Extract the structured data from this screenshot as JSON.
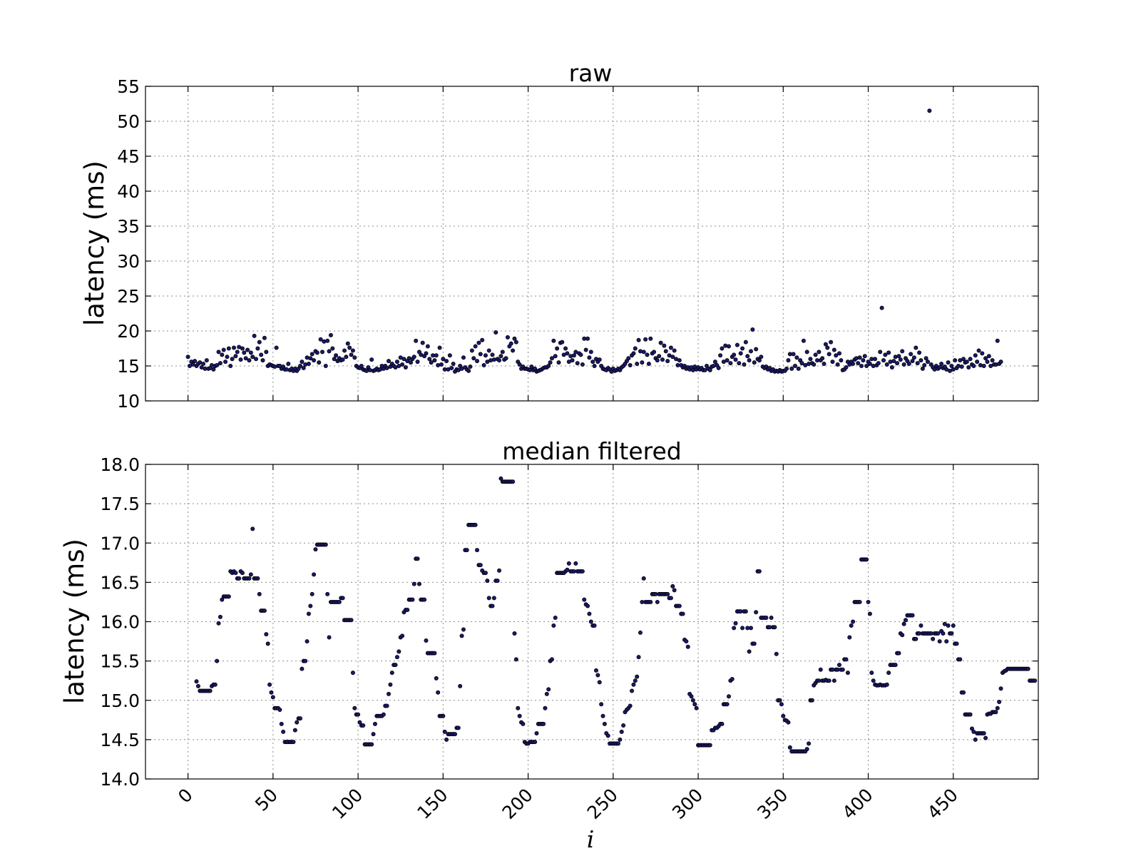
{
  "colors": {
    "marker": "#1a1a6e",
    "grid": "#8c8c8c"
  },
  "chart_data": [
    {
      "type": "scatter",
      "title": "raw",
      "xlabel": "",
      "ylabel": "latency (ms)",
      "xlim": [
        -25,
        500
      ],
      "ylim": [
        10,
        55
      ],
      "xticks": [
        0,
        50,
        100,
        150,
        200,
        250,
        300,
        350,
        400,
        450
      ],
      "yticks": [
        10,
        15,
        20,
        25,
        30,
        35,
        40,
        45,
        50,
        55
      ],
      "x_tick_labels_visible": false,
      "grid": true,
      "x_start": 0,
      "y": [
        16.3,
        15.0,
        15.6,
        15.2,
        15.7,
        15.0,
        15.3,
        15.5,
        14.8,
        15.3,
        14.6,
        15.8,
        14.6,
        14.7,
        15.1,
        14.5,
        15.0,
        15.1,
        17.0,
        15.4,
        16.6,
        17.3,
        15.6,
        16.3,
        17.5,
        15.0,
        16.0,
        17.6,
        16.4,
        17.0,
        17.7,
        15.9,
        17.5,
        16.9,
        16.1,
        17.3,
        15.8,
        16.9,
        16.3,
        19.3,
        16.0,
        17.5,
        18.4,
        16.6,
        15.8,
        19.0,
        17.0,
        15.0,
        15.2,
        15.1,
        15.0,
        14.9,
        17.6,
        15.0,
        15.0,
        14.6,
        14.9,
        14.5,
        14.5,
        15.3,
        14.4,
        14.6,
        14.3,
        14.6,
        14.3,
        14.6,
        15.0,
        15.6,
        14.7,
        15.2,
        16.2,
        15.3,
        16.1,
        16.7,
        15.8,
        17.1,
        16.9,
        15.5,
        18.8,
        17.0,
        18.5,
        15.0,
        18.6,
        17.1,
        19.4,
        17.5,
        16.0,
        16.5,
        15.7,
        16.1,
        15.8,
        15.9,
        17.2,
        16.3,
        18.2,
        17.6,
        16.6,
        17.2,
        16.2,
        15.0,
        14.8,
        14.7,
        15.0,
        14.5,
        14.4,
        14.3,
        14.8,
        14.4,
        15.9,
        14.3,
        14.4,
        14.6,
        14.4,
        14.5,
        15.0,
        14.6,
        15.0,
        14.7,
        15.7,
        14.9,
        15.3,
        15.0,
        14.8,
        15.6,
        15.0,
        16.2,
        15.2,
        16.0,
        14.8,
        15.7,
        16.1,
        15.5,
        16.0,
        16.3,
        18.6,
        15.6,
        17.0,
        16.6,
        18.3,
        16.4,
        16.8,
        17.8,
        16.0,
        15.5,
        16.5,
        15.8,
        16.5,
        15.1,
        17.6,
        15.2,
        16.0,
        14.5,
        15.7,
        14.5,
        16.5,
        14.7,
        15.3,
        14.2,
        14.5,
        14.4,
        15.0,
        14.6,
        16.2,
        14.8,
        14.5,
        14.3,
        14.9,
        17.2,
        16.1,
        17.8,
        15.7,
        18.3,
        16.7,
        18.7,
        15.1,
        16.5,
        15.6,
        17.2,
        15.8,
        16.6,
        15.9,
        19.8,
        16.0,
        15.8,
        16.4,
        17.0,
        15.9,
        16.1,
        19.1,
        17.8,
        18.2,
        17.2,
        18.9,
        18.4,
        15.6,
        15.2,
        14.6,
        14.9,
        14.6,
        14.6,
        14.5,
        14.4,
        14.9,
        14.4,
        14.6,
        14.2,
        14.3,
        14.4,
        14.5,
        14.7,
        14.8,
        14.8,
        15.0,
        15.5,
        16.1,
        18.6,
        16.4,
        17.5,
        15.5,
        18.3,
        18.4,
        16.6,
        17.5,
        16.8,
        15.6,
        16.4,
        15.8,
        16.5,
        17.0,
        15.4,
        16.8,
        16.6,
        15.2,
        18.9,
        17.3,
        18.9,
        16.2,
        17.0,
        15.6,
        15.0,
        16.0,
        15.6,
        15.9,
        15.0,
        14.6,
        14.5,
        14.4,
        14.7,
        14.5,
        14.2,
        14.6,
        14.3,
        14.4,
        14.6,
        14.4,
        14.8,
        15.0,
        15.3,
        15.7,
        16.1,
        15.1,
        16.5,
        16.8,
        17.5,
        15.3,
        18.7,
        17.1,
        15.5,
        17.0,
        18.8,
        16.6,
        15.3,
        18.9,
        16.8,
        17.0,
        16.1,
        15.8,
        16.4,
        18.3,
        15.9,
        17.9,
        17.1,
        15.7,
        16.5,
        17.6,
        16.3,
        17.2,
        16.0,
        15.1,
        15.8,
        15.1,
        14.8,
        15.0,
        14.6,
        14.8,
        14.5,
        14.8,
        14.4,
        14.9,
        14.5,
        14.8,
        14.5,
        14.7,
        14.4,
        14.4,
        15.0,
        14.6,
        14.4,
        14.9,
        15.0,
        15.6,
        15.1,
        14.7,
        16.5,
        17.5,
        15.6,
        17.9,
        15.8,
        17.8,
        15.4,
        16.3,
        16.6,
        15.9,
        18.0,
        15.4,
        16.8,
        17.5,
        15.2,
        18.4,
        16.4,
        15.8,
        17.1,
        20.2,
        15.5,
        17.4,
        16.0,
        15.8,
        16.3,
        14.9,
        14.7,
        14.9,
        14.5,
        14.7,
        14.3,
        14.5,
        14.2,
        14.3,
        14.2,
        14.4,
        14.2,
        14.3,
        14.3,
        14.6,
        15.8,
        16.7,
        14.6,
        16.7,
        15.0,
        16.2,
        14.6,
        15.8,
        15.4,
        18.6,
        15.1,
        17.0,
        15.3,
        16.0,
        15.4,
        15.2,
        16.6,
        15.8,
        17.0,
        15.8,
        16.1,
        15.3,
        18.1,
        17.6,
        16.7,
        18.4,
        15.6,
        17.3,
        16.5,
        15.2,
        16.8,
        15.8,
        14.4,
        14.5,
        14.8,
        15.6,
        15.2,
        15.6,
        15.3,
        15.9,
        16.1,
        15.4,
        16.2,
        15.0,
        15.8,
        16.4,
        15.0,
        15.6,
        15.3,
        16.0,
        15.0,
        16.0,
        15.1,
        15.4,
        17.0,
        23.3,
        15.8,
        16.6,
        15.2,
        16.9,
        15.6,
        14.8,
        15.7,
        16.3,
        15.4,
        16.4,
        15.9,
        17.1,
        15.2,
        16.1,
        15.7,
        15.3,
        16.7,
        15.7,
        16.2,
        17.6,
        15.4,
        16.9,
        15.8,
        14.6,
        15.1,
        16.1,
        15.6,
        51.5,
        15.2,
        14.8,
        14.5,
        15.0,
        14.6,
        14.8,
        15.3,
        14.7,
        14.9,
        14.5,
        15.5,
        14.3,
        15.0,
        14.5,
        15.8,
        14.7,
        15.0,
        15.8,
        14.9,
        16.0,
        15.5,
        15.6,
        14.8,
        16.0,
        15.2,
        15.0,
        16.5,
        15.6,
        17.2,
        15.1,
        16.8,
        15.0,
        16.1,
        15.6,
        16.4,
        15.0,
        15.8,
        15.2,
        15.2,
        18.6,
        15.3,
        15.6
      ]
    },
    {
      "type": "scatter",
      "title": "median filtered",
      "xlabel": "i",
      "ylabel": "latency (ms)",
      "xlim": [
        -25,
        500
      ],
      "ylim": [
        14.0,
        18.0
      ],
      "xticks": [
        0,
        50,
        100,
        150,
        200,
        250,
        300,
        350,
        400,
        450
      ],
      "yticks": [
        14.0,
        14.5,
        15.0,
        15.5,
        16.0,
        16.5,
        17.0,
        17.5,
        18.0
      ],
      "x_tick_labels_visible": true,
      "x_tick_rotation": -45,
      "grid": true,
      "x_start": 5,
      "y": [
        15.24,
        15.18,
        15.12,
        15.12,
        15.12,
        15.12,
        15.12,
        15.12,
        15.12,
        15.18,
        15.2,
        15.2,
        15.5,
        15.98,
        16.06,
        16.28,
        16.32,
        16.32,
        16.32,
        16.32,
        16.64,
        16.62,
        16.64,
        16.62,
        16.55,
        16.55,
        16.64,
        16.62,
        16.55,
        16.55,
        16.55,
        16.55,
        16.6,
        17.18,
        16.55,
        16.55,
        16.55,
        16.35,
        16.14,
        16.14,
        16.14,
        15.84,
        15.72,
        15.2,
        15.1,
        15.04,
        14.9,
        14.9,
        14.9,
        14.88,
        14.7,
        14.6,
        14.47,
        14.47,
        14.47,
        14.47,
        14.47,
        14.47,
        14.62,
        14.72,
        14.77,
        14.77,
        15.4,
        15.5,
        15.5,
        15.75,
        16.1,
        16.2,
        16.35,
        16.6,
        16.92,
        16.98,
        16.98,
        16.98,
        16.98,
        16.98,
        16.98,
        16.35,
        15.8,
        16.25,
        16.25,
        16.25,
        16.25,
        16.25,
        16.25,
        16.3,
        16.3,
        16.02,
        16.02,
        16.02,
        16.02,
        16.02,
        15.35,
        14.9,
        14.82,
        14.82,
        14.72,
        14.68,
        14.68,
        14.44,
        14.44,
        14.44,
        14.44,
        14.44,
        14.57,
        14.7,
        14.8,
        14.8,
        14.8,
        14.8,
        14.82,
        14.93,
        14.93,
        15.08,
        15.2,
        15.35,
        15.45,
        15.45,
        15.55,
        15.62,
        15.8,
        15.82,
        16.12,
        16.15,
        16.15,
        16.28,
        16.28,
        16.28,
        16.48,
        16.8,
        16.8,
        16.48,
        16.28,
        16.28,
        16.28,
        15.76,
        15.6,
        15.6,
        15.6,
        15.6,
        15.6,
        15.28,
        15.1,
        14.8,
        14.8,
        14.8,
        14.6,
        14.5,
        14.57,
        14.57,
        14.57,
        14.57,
        14.57,
        14.65,
        14.65,
        15.18,
        15.82,
        15.9,
        16.91,
        16.91,
        17.23,
        17.23,
        17.23,
        17.23,
        17.23,
        16.91,
        16.72,
        16.72,
        16.65,
        16.62,
        16.62,
        16.52,
        16.3,
        16.2,
        16.2,
        16.3,
        16.52,
        16.52,
        16.65,
        17.82,
        17.78,
        17.78,
        17.78,
        17.78,
        17.78,
        17.78,
        17.78,
        15.85,
        15.52,
        14.9,
        14.8,
        14.72,
        14.7,
        14.47,
        14.45,
        14.45,
        14.47,
        14.47,
        14.47,
        14.47,
        14.58,
        14.7,
        14.7,
        14.7,
        14.7,
        14.9,
        15.08,
        15.14,
        15.5,
        15.52,
        15.95,
        16.05,
        16.62,
        16.62,
        16.62,
        16.62,
        16.62,
        16.64,
        16.66,
        16.74,
        16.64,
        16.64,
        16.64,
        16.74,
        16.64,
        16.64,
        16.64,
        16.64,
        16.28,
        16.22,
        16.2,
        16.1,
        16.0,
        15.95,
        15.95,
        15.38,
        15.32,
        15.23,
        14.95,
        14.8,
        14.7,
        14.58,
        14.55,
        14.45,
        14.45,
        14.45,
        14.45,
        14.45,
        14.45,
        14.5,
        14.6,
        14.68,
        14.85,
        14.88,
        14.9,
        14.93,
        15.12,
        15.2,
        15.25,
        15.3,
        15.55,
        15.86,
        16.25,
        16.55,
        16.25,
        16.25,
        16.25,
        16.25,
        16.35,
        16.35,
        16.35,
        16.25,
        16.35,
        16.35,
        16.35,
        16.35,
        16.35,
        16.35,
        16.3,
        16.3,
        16.45,
        16.4,
        16.2,
        16.2,
        16.2,
        16.1,
        16.1,
        15.77,
        15.75,
        15.68,
        15.08,
        15.05,
        15.0,
        14.95,
        14.9,
        14.43,
        14.43,
        14.43,
        14.43,
        14.43,
        14.43,
        14.43,
        14.43,
        14.62,
        14.62,
        14.65,
        14.65,
        14.67,
        14.7,
        14.7,
        14.95,
        14.95,
        14.95,
        15.05,
        15.25,
        15.27,
        15.92,
        15.98,
        16.13,
        16.13,
        16.13,
        15.92,
        16.13,
        16.13,
        15.92,
        15.62,
        15.92,
        15.72,
        15.72,
        16.12,
        16.64,
        16.64,
        16.05,
        16.05,
        16.05,
        16.05,
        15.93,
        15.93,
        16.05,
        15.93,
        15.93,
        15.59,
        15.0,
        15.0,
        14.95,
        14.8,
        14.75,
        14.74,
        14.72,
        14.4,
        14.35,
        14.35,
        14.35,
        14.35,
        14.35,
        14.35,
        14.35,
        14.35,
        14.35,
        14.38,
        14.45,
        15.0,
        15.0,
        15.19,
        15.22,
        15.25,
        15.25,
        15.39,
        15.25,
        15.25,
        15.26,
        15.25,
        15.25,
        15.39,
        15.39,
        15.25,
        15.39,
        15.39,
        15.45,
        15.39,
        15.39,
        15.52,
        15.52,
        15.35,
        15.8,
        15.95,
        16.0,
        16.25,
        16.25,
        16.25,
        16.25,
        16.79,
        16.79,
        16.79,
        16.79,
        16.25,
        16.1,
        15.35,
        15.25,
        15.2,
        15.19,
        15.19,
        15.2,
        15.19,
        15.19,
        15.19,
        15.2,
        15.35,
        15.45,
        15.45,
        15.45,
        15.45,
        15.6,
        15.6,
        15.85,
        15.83,
        15.97,
        16.02,
        16.08,
        16.08,
        16.08,
        16.08,
        15.78,
        15.78,
        15.85,
        15.85,
        15.95,
        15.85,
        15.85,
        15.85,
        15.85,
        15.85,
        15.85,
        15.78,
        15.85,
        15.85,
        15.85,
        15.75,
        15.88,
        15.85,
        15.97,
        15.75,
        15.95,
        15.85,
        15.85,
        15.95,
        15.72,
        15.72,
        15.52,
        15.52,
        15.1,
        15.1,
        14.82,
        14.82,
        14.82,
        14.82,
        14.64,
        14.6,
        14.5,
        14.58,
        14.58,
        14.58,
        14.58,
        14.58,
        14.52,
        14.82,
        14.83,
        14.83,
        14.85,
        14.85,
        14.85,
        14.9,
        14.98,
        15.15,
        15.35,
        15.37,
        15.38,
        15.4,
        15.4,
        15.4,
        15.4,
        15.4,
        15.4,
        15.4,
        15.4,
        15.4,
        15.4,
        15.4,
        15.4,
        15.4,
        15.25,
        15.25,
        15.25,
        15.25
      ]
    }
  ]
}
